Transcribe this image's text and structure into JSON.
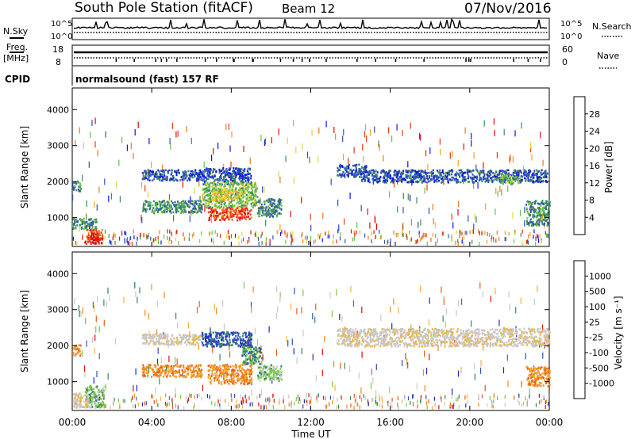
{
  "header": {
    "station": "South Pole Station (fitACF)",
    "beam": "Beam 12",
    "date": "07/Nov/2016"
  },
  "summary": {
    "nsky_label": "N.Sky",
    "nsearch_label": "N.Search",
    "freq_label": "Freq.",
    "freq_unit": "[MHz]",
    "nave_label": "Nave",
    "cpid_label": "CPID",
    "cpid_value": "normalsound (fast) 157 RF",
    "noise_ticks": [
      "10^5",
      "10^0"
    ],
    "freq_ticks": [
      "18",
      "8"
    ],
    "nave_ticks": [
      "60",
      "0"
    ]
  },
  "x_axis": {
    "label": "Time UT",
    "ticks": [
      "00:00",
      "04:00",
      "08:00",
      "12:00",
      "16:00",
      "20:00",
      "00:00"
    ]
  },
  "colors": {
    "power": [
      "#0a14e6",
      "#2f52b4",
      "#3e8a5a",
      "#66c04a",
      "#e6d23c",
      "#f0a020",
      "#f07818",
      "#e63c14",
      "#e60a0a"
    ],
    "velocity": [
      "#e60a0a",
      "#f05a14",
      "#f08c1e",
      "#f0b43c",
      "#c8c8c8",
      "#c8c8c8",
      "#78c846",
      "#2f8a5a",
      "#2f52b4",
      "#1e28c8"
    ]
  },
  "chart_data": [
    {
      "type": "heatmap",
      "name": "power",
      "ylabel": "Slant Range [km]",
      "yticks": [
        1000,
        2000,
        3000,
        4000
      ],
      "ylim": [
        200,
        4600
      ],
      "xlim_hours": [
        0,
        24
      ],
      "colorbar": {
        "label": "Power [dB]",
        "ticks": [
          "4",
          "8",
          "12",
          "16",
          "20",
          "24",
          "28"
        ],
        "range": [
          0,
          32
        ]
      },
      "regions": [
        {
          "t": [
            0.0,
            0.4
          ],
          "r": [
            1750,
            2050
          ],
          "level": 2
        },
        {
          "t": [
            0.6,
            1.5
          ],
          "r": [
            300,
            700
          ],
          "level": 7
        },
        {
          "t": [
            0.9,
            1.3
          ],
          "r": [
            300,
            600
          ],
          "level": 8
        },
        {
          "t": [
            0.0,
            1.2
          ],
          "r": [
            700,
            1000
          ],
          "level": 2
        },
        {
          "t": [
            3.5,
            6.5
          ],
          "r": [
            2050,
            2350
          ],
          "level": 1
        },
        {
          "t": [
            3.5,
            6.5
          ],
          "r": [
            1150,
            1500
          ],
          "level": 2
        },
        {
          "t": [
            6.5,
            9.0
          ],
          "r": [
            1950,
            2400
          ],
          "level": 1
        },
        {
          "t": [
            6.5,
            9.3
          ],
          "r": [
            1300,
            2000
          ],
          "level": 3
        },
        {
          "t": [
            6.8,
            9.0
          ],
          "r": [
            950,
            1300
          ],
          "level": 7
        },
        {
          "t": [
            7.0,
            8.5
          ],
          "r": [
            1500,
            1800
          ],
          "level": 4
        },
        {
          "t": [
            9.3,
            10.5
          ],
          "r": [
            1050,
            1550
          ],
          "level": 2
        },
        {
          "t": [
            13.3,
            14.8
          ],
          "r": [
            2150,
            2500
          ],
          "level": 1
        },
        {
          "t": [
            14.5,
            23.9
          ],
          "r": [
            2000,
            2350
          ],
          "level": 1
        },
        {
          "t": [
            21.5,
            22.5
          ],
          "r": [
            1950,
            2200
          ],
          "level": 3
        },
        {
          "t": [
            22.8,
            24.0
          ],
          "r": [
            800,
            1500
          ],
          "level": 2
        }
      ]
    },
    {
      "type": "heatmap",
      "name": "velocity",
      "ylabel": "Slant Range [km]",
      "yticks": [
        1000,
        2000,
        3000,
        4000
      ],
      "ylim": [
        200,
        4600
      ],
      "xlim_hours": [
        0,
        24
      ],
      "colorbar": {
        "label": "Velocity [m s⁻¹]",
        "ticks": [
          "1000",
          "500",
          "100",
          "25",
          "-25",
          "-100",
          "-500",
          "-1000"
        ]
      },
      "regions": [
        {
          "t": [
            0.0,
            0.4
          ],
          "r": [
            1750,
            2050
          ],
          "level": 2
        },
        {
          "t": [
            0.6,
            1.6
          ],
          "r": [
            300,
            900
          ],
          "level": 6
        },
        {
          "t": [
            0.0,
            0.8
          ],
          "r": [
            300,
            700
          ],
          "level": 4
        },
        {
          "t": [
            3.5,
            6.5
          ],
          "r": [
            2050,
            2350
          ],
          "level": 4
        },
        {
          "t": [
            3.5,
            6.5
          ],
          "r": [
            1150,
            1500
          ],
          "level": 2
        },
        {
          "t": [
            6.5,
            9.0
          ],
          "r": [
            2000,
            2400
          ],
          "level": 8
        },
        {
          "t": [
            6.8,
            9.0
          ],
          "r": [
            950,
            1500
          ],
          "level": 2
        },
        {
          "t": [
            8.5,
            9.5
          ],
          "r": [
            1500,
            2000
          ],
          "level": 7
        },
        {
          "t": [
            9.3,
            10.5
          ],
          "r": [
            1050,
            1500
          ],
          "level": 6
        },
        {
          "t": [
            13.3,
            24.0
          ],
          "r": [
            2000,
            2500
          ],
          "level": 4
        },
        {
          "t": [
            22.8,
            24.0
          ],
          "r": [
            900,
            1450
          ],
          "level": 2
        }
      ]
    }
  ]
}
